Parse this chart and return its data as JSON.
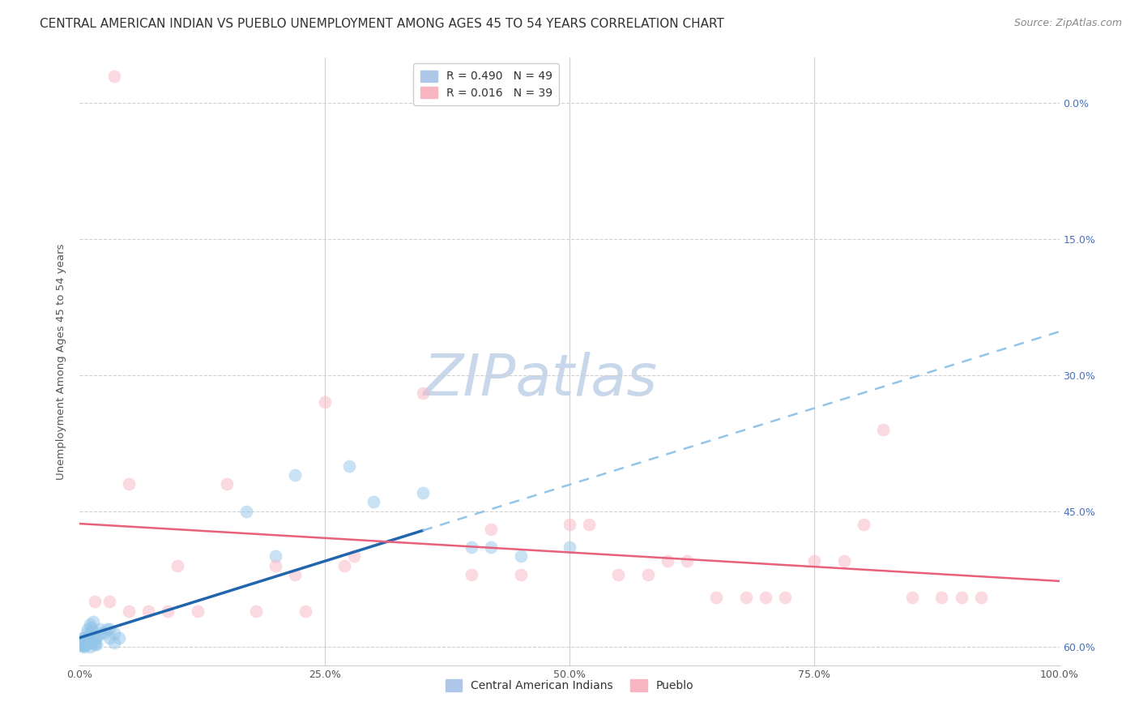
{
  "title": "CENTRAL AMERICAN INDIAN VS PUEBLO UNEMPLOYMENT AMONG AGES 45 TO 54 YEARS CORRELATION CHART",
  "source": "Source: ZipAtlas.com",
  "xlabel_ticks": [
    "0.0%",
    "25.0%",
    "50.0%",
    "75.0%",
    "100.0%"
  ],
  "xlabel_vals": [
    0,
    25,
    50,
    75,
    100
  ],
  "ylabel_right_ticks": [
    "60.0%",
    "45.0%",
    "30.0%",
    "15.0%",
    "0.0%"
  ],
  "ylabel_right_vals": [
    60,
    45,
    30,
    15,
    0
  ],
  "ylabel_label": "Unemployment Among Ages 45 to 54 years",
  "watermark_text": "ZIPatlas",
  "blue_color": "#93c5e8",
  "pink_color": "#f7b6c2",
  "blue_line_color": "#2166ac",
  "pink_line_color": "#e8607a",
  "blue_dashed_color": "#93c5e8",
  "right_tick_color": "#4472c4",
  "blue_points": [
    [
      0.2,
      0.3
    ],
    [
      0.3,
      0.4
    ],
    [
      0.4,
      0.5
    ],
    [
      0.5,
      0.2
    ],
    [
      0.5,
      1.0
    ],
    [
      0.6,
      0.5
    ],
    [
      0.7,
      0.8
    ],
    [
      0.7,
      1.5
    ],
    [
      0.8,
      0.5
    ],
    [
      0.8,
      2.0
    ],
    [
      0.9,
      1.0
    ],
    [
      1.0,
      1.5
    ],
    [
      1.0,
      2.5
    ],
    [
      1.1,
      2.2
    ],
    [
      1.2,
      1.0
    ],
    [
      1.3,
      1.8
    ],
    [
      1.4,
      2.8
    ],
    [
      1.5,
      0.5
    ],
    [
      1.5,
      0.3
    ],
    [
      1.6,
      1.0
    ],
    [
      1.7,
      0.3
    ],
    [
      1.8,
      1.2
    ],
    [
      2.0,
      2.0
    ],
    [
      2.2,
      1.5
    ],
    [
      2.5,
      1.5
    ],
    [
      2.8,
      2.0
    ],
    [
      3.0,
      1.0
    ],
    [
      3.0,
      2.0
    ],
    [
      3.5,
      0.5
    ],
    [
      3.5,
      1.5
    ],
    [
      4.0,
      1.0
    ],
    [
      0.2,
      0.1
    ],
    [
      0.3,
      0.3
    ],
    [
      0.4,
      0.2
    ],
    [
      0.6,
      0.3
    ],
    [
      0.5,
      0.0
    ],
    [
      1.0,
      0.0
    ],
    [
      1.2,
      0.5
    ],
    [
      0.3,
      1.0
    ],
    [
      17.0,
      15.0
    ],
    [
      22.0,
      19.0
    ],
    [
      27.5,
      20.0
    ],
    [
      30.0,
      16.0
    ],
    [
      35.0,
      17.0
    ],
    [
      40.0,
      11.0
    ],
    [
      42.0,
      11.0
    ],
    [
      45.0,
      10.0
    ],
    [
      50.0,
      11.0
    ],
    [
      20.0,
      10.0
    ]
  ],
  "pink_points": [
    [
      3.5,
      63.0
    ],
    [
      5.0,
      18.0
    ],
    [
      15.0,
      18.0
    ],
    [
      25.0,
      27.0
    ],
    [
      35.0,
      28.0
    ],
    [
      50.0,
      13.5
    ],
    [
      52.0,
      13.5
    ],
    [
      42.0,
      13.0
    ],
    [
      40.0,
      8.0
    ],
    [
      45.0,
      8.0
    ],
    [
      55.0,
      8.0
    ],
    [
      58.0,
      8.0
    ],
    [
      60.0,
      9.5
    ],
    [
      62.0,
      9.5
    ],
    [
      65.0,
      5.5
    ],
    [
      68.0,
      5.5
    ],
    [
      70.0,
      5.5
    ],
    [
      72.0,
      5.5
    ],
    [
      75.0,
      9.5
    ],
    [
      78.0,
      9.5
    ],
    [
      80.0,
      13.5
    ],
    [
      82.0,
      24.0
    ],
    [
      85.0,
      5.5
    ],
    [
      88.0,
      5.5
    ],
    [
      90.0,
      5.5
    ],
    [
      92.0,
      5.5
    ],
    [
      10.0,
      9.0
    ],
    [
      20.0,
      9.0
    ],
    [
      22.0,
      8.0
    ],
    [
      28.0,
      10.0
    ],
    [
      1.5,
      5.0
    ],
    [
      3.0,
      5.0
    ],
    [
      5.0,
      4.0
    ],
    [
      7.0,
      4.0
    ],
    [
      9.0,
      4.0
    ],
    [
      12.0,
      4.0
    ],
    [
      18.0,
      4.0
    ],
    [
      23.0,
      4.0
    ],
    [
      27.0,
      9.0
    ]
  ],
  "xlim": [
    0,
    100
  ],
  "ylim": [
    -2,
    65
  ],
  "y_plot_min": 0,
  "y_plot_max": 65,
  "background_color": "#ffffff",
  "grid_color": "#d0d0d0",
  "title_fontsize": 11,
  "axis_label_fontsize": 9.5,
  "tick_fontsize": 9,
  "legend_fontsize": 10,
  "source_fontsize": 9
}
